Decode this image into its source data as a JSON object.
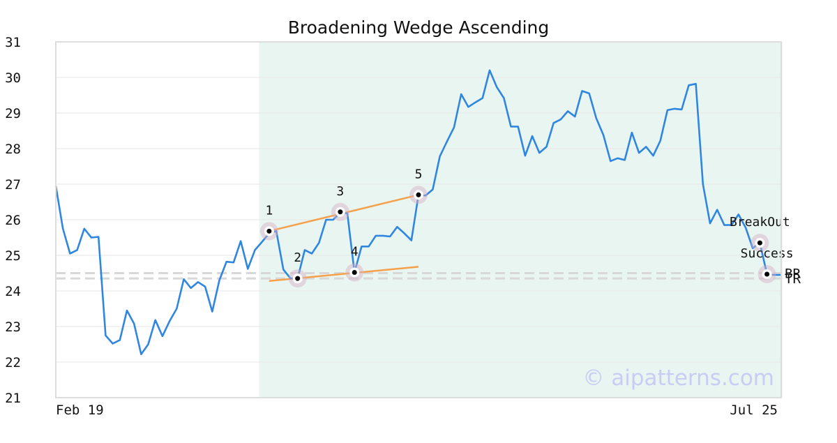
{
  "chart_data": {
    "type": "line",
    "title": "Broadening Wedge Ascending",
    "xlabel": "",
    "ylabel": "",
    "ylim": [
      21,
      31
    ],
    "yticks": [
      21,
      22,
      23,
      24,
      25,
      26,
      27,
      28,
      29,
      30,
      31
    ],
    "x_tick_labels": [
      {
        "label": "Feb 19",
        "index": 0
      },
      {
        "label": "Jul 25",
        "index": 102
      }
    ],
    "grid": true,
    "series": [
      {
        "color": "#2f86e0",
        "values": [
          26.95,
          25.75,
          25.05,
          25.15,
          25.75,
          25.5,
          25.52,
          22.75,
          22.52,
          22.62,
          23.45,
          23.08,
          22.22,
          22.5,
          23.18,
          22.73,
          23.15,
          23.5,
          24.33,
          24.08,
          24.25,
          24.12,
          23.42,
          24.3,
          24.82,
          24.8,
          25.4,
          24.62,
          25.15,
          25.38,
          25.62,
          25.68,
          24.6,
          24.35,
          24.35,
          25.15,
          25.05,
          25.35,
          26.0,
          26.0,
          26.2,
          26.18,
          24.52,
          25.25,
          25.25,
          25.55,
          25.55,
          25.53,
          25.8,
          25.62,
          25.42,
          26.7,
          26.68,
          26.85,
          27.78,
          28.2,
          28.6,
          29.53,
          29.17,
          29.3,
          29.42,
          30.2,
          29.73,
          29.42,
          28.62,
          28.62,
          27.8,
          28.35,
          27.88,
          28.05,
          28.72,
          28.82,
          29.05,
          28.9,
          29.62,
          29.55,
          28.85,
          28.38,
          27.65,
          27.73,
          27.68,
          28.45,
          27.88,
          28.05,
          27.8,
          28.22,
          29.08,
          29.12,
          29.1,
          29.78,
          29.82,
          27.0,
          25.9,
          26.28,
          25.85,
          25.85,
          26.15,
          25.78,
          25.2,
          25.35,
          24.47,
          24.45,
          24.45
        ]
      }
    ],
    "shaded_region": {
      "start_index": 28,
      "end_index": 102,
      "color": "#e8f5f1"
    },
    "trend_lines": [
      {
        "color": "#f5a04a",
        "from": {
          "index": 30,
          "value": 25.68
        },
        "to": {
          "index": 51,
          "value": 26.7
        }
      },
      {
        "color": "#f5a04a",
        "from": {
          "index": 30,
          "value": 24.28
        },
        "to": {
          "index": 51,
          "value": 24.68
        }
      }
    ],
    "pattern_points": [
      {
        "label": "1",
        "index": 30,
        "value": 25.68
      },
      {
        "label": "2",
        "index": 34,
        "value": 24.35
      },
      {
        "label": "3",
        "index": 40,
        "value": 26.22
      },
      {
        "label": "4",
        "index": 42,
        "value": 24.52
      },
      {
        "label": "5",
        "index": 51,
        "value": 26.7
      }
    ],
    "event_points": [
      {
        "label": "BreakOut",
        "index": 99,
        "value": 25.35
      },
      {
        "label": "Success",
        "index": 100,
        "value": 24.47
      }
    ],
    "reference_lines": [
      {
        "label": "BR",
        "value": 24.5
      },
      {
        "label": "TR",
        "value": 24.35
      }
    ],
    "watermark": "© aipatterns.com"
  }
}
